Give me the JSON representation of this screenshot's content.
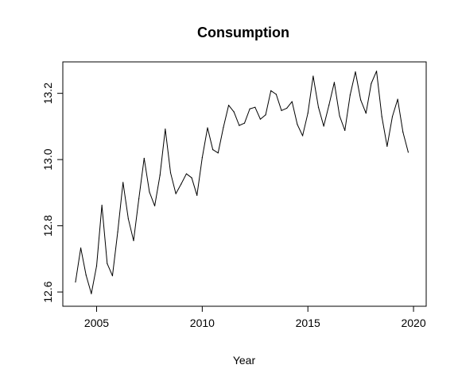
{
  "chart_data": {
    "type": "line",
    "title": "Consumption",
    "xlabel": "Year",
    "ylabel": "",
    "xlim": [
      2003.4,
      2020.6
    ],
    "ylim": [
      12.557,
      13.295
    ],
    "grid": false,
    "x_ticks": [
      2005,
      2010,
      2015,
      2020
    ],
    "x_tick_labels": [
      "2005",
      "2010",
      "2015",
      "2020"
    ],
    "y_ticks": [
      12.6,
      12.8,
      13.0,
      13.2
    ],
    "y_tick_labels": [
      "12.6",
      "12.8",
      "13.0",
      "13.2"
    ],
    "series": [
      {
        "color": "#000000",
        "x": [
          2004.0,
          2004.25,
          2004.5,
          2004.75,
          2005.0,
          2005.25,
          2005.5,
          2005.75,
          2006.0,
          2006.25,
          2006.5,
          2006.75,
          2007.0,
          2007.25,
          2007.5,
          2007.75,
          2008.0,
          2008.25,
          2008.5,
          2008.75,
          2009.0,
          2009.25,
          2009.5,
          2009.75,
          2010.0,
          2010.25,
          2010.5,
          2010.75,
          2011.0,
          2011.25,
          2011.5,
          2011.75,
          2012.0,
          2012.25,
          2012.5,
          2012.75,
          2013.0,
          2013.25,
          2013.5,
          2013.75,
          2014.0,
          2014.25,
          2014.5,
          2014.75,
          2015.0,
          2015.25,
          2015.5,
          2015.75,
          2016.0,
          2016.25,
          2016.5,
          2016.75,
          2017.0,
          2017.25,
          2017.5,
          2017.75,
          2018.0,
          2018.25,
          2018.5,
          2018.75,
          2019.0,
          2019.25,
          2019.5,
          2019.75
        ],
        "y": [
          12.63,
          12.733,
          12.651,
          12.595,
          12.679,
          12.862,
          12.686,
          12.649,
          12.782,
          12.931,
          12.821,
          12.755,
          12.882,
          13.004,
          12.902,
          12.86,
          12.953,
          13.092,
          12.96,
          12.897,
          12.926,
          12.957,
          12.945,
          12.892,
          13.006,
          13.096,
          13.03,
          13.02,
          13.097,
          13.164,
          13.144,
          13.103,
          13.11,
          13.153,
          13.158,
          13.122,
          13.135,
          13.208,
          13.197,
          13.148,
          13.155,
          13.175,
          13.106,
          13.072,
          13.14,
          13.252,
          13.158,
          13.101,
          13.165,
          13.233,
          13.132,
          13.088,
          13.195,
          13.265,
          13.18,
          13.14,
          13.23,
          13.267,
          13.13,
          13.04,
          13.13,
          13.182,
          13.083,
          13.022
        ]
      }
    ]
  }
}
